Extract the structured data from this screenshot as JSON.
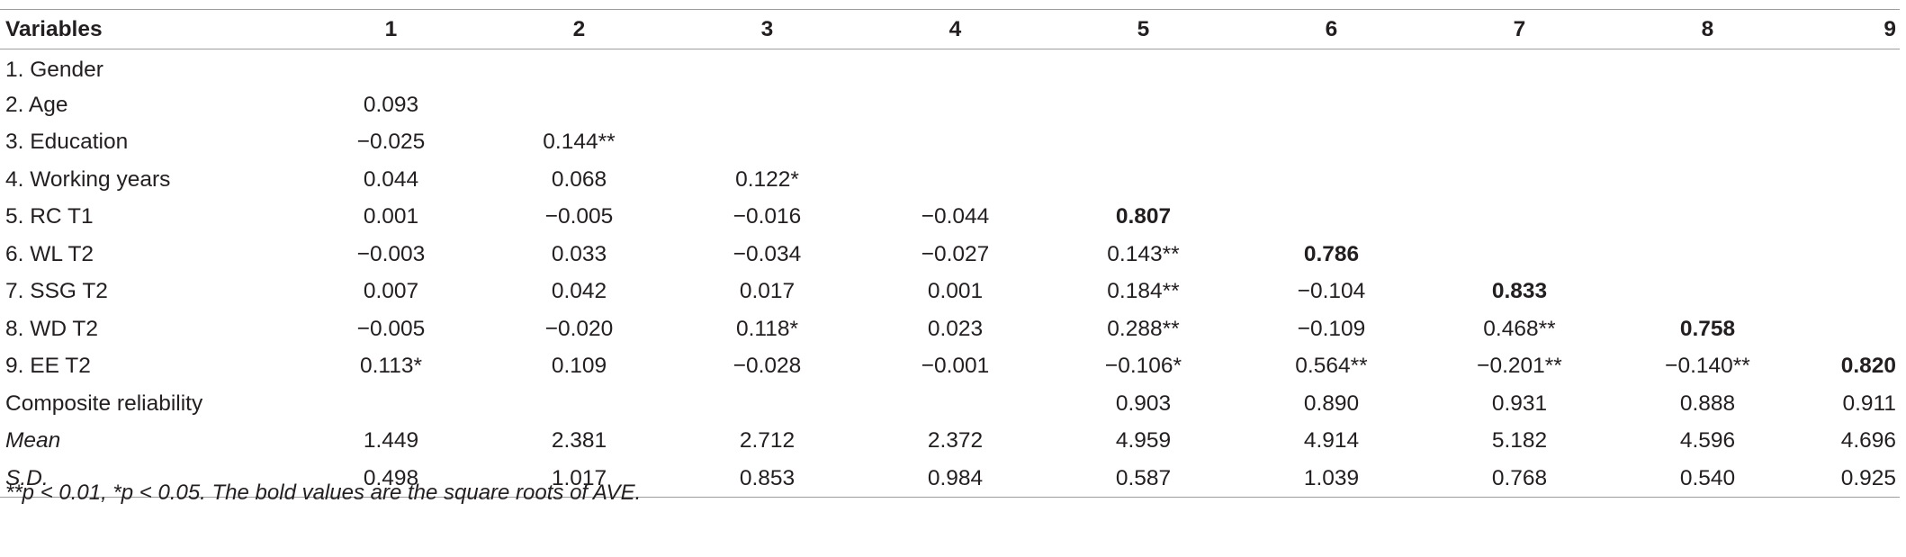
{
  "table": {
    "headers": [
      "Variables",
      "1",
      "2",
      "3",
      "4",
      "5",
      "6",
      "7",
      "8",
      "9"
    ],
    "rows": [
      {
        "label": "1. Gender",
        "cells": [
          "",
          "",
          "",
          "",
          "",
          "",
          "",
          "",
          ""
        ]
      },
      {
        "label": "2. Age",
        "cells": [
          "0.093",
          "",
          "",
          "",
          "",
          "",
          "",
          "",
          ""
        ]
      },
      {
        "label": "3. Education",
        "cells": [
          "−0.025",
          "0.144**",
          "",
          "",
          "",
          "",
          "",
          "",
          ""
        ]
      },
      {
        "label": "4. Working years",
        "cells": [
          "0.044",
          "0.068",
          "0.122*",
          "",
          "",
          "",
          "",
          "",
          ""
        ]
      },
      {
        "label": "5. RC T1",
        "cells": [
          "0.001",
          "−0.005",
          "−0.016",
          "−0.044",
          "0.807",
          "",
          "",
          "",
          ""
        ]
      },
      {
        "label": "6. WL T2",
        "cells": [
          "−0.003",
          "0.033",
          "−0.034",
          "−0.027",
          "0.143**",
          "0.786",
          "",
          "",
          ""
        ]
      },
      {
        "label": "7. SSG T2",
        "cells": [
          "0.007",
          "0.042",
          "0.017",
          "0.001",
          "0.184**",
          "−0.104",
          "0.833",
          "",
          ""
        ]
      },
      {
        "label": "8. WD T2",
        "cells": [
          "−0.005",
          "−0.020",
          "0.118*",
          "0.023",
          "0.288**",
          "−0.109",
          "0.468**",
          "0.758",
          ""
        ]
      },
      {
        "label": "9. EE T2",
        "cells": [
          "0.113*",
          "0.109",
          "−0.028",
          "−0.001",
          "−0.106*",
          "0.564**",
          "−0.201**",
          "−0.140**",
          "0.820"
        ]
      },
      {
        "label": "Composite reliability",
        "cells": [
          "",
          "",
          "",
          "",
          "0.903",
          "0.890",
          "0.931",
          "0.888",
          "0.911"
        ]
      },
      {
        "label": "Mean",
        "cells": [
          "1.449",
          "2.381",
          "2.712",
          "2.372",
          "4.959",
          "4.914",
          "5.182",
          "4.596",
          "4.696"
        ]
      },
      {
        "label": "S.D.",
        "cells": [
          "0.498",
          "1.017",
          "0.853",
          "0.984",
          "0.587",
          "1.039",
          "0.768",
          "0.540",
          "0.925"
        ]
      }
    ]
  },
  "note": "**p < 0.01, *p < 0.05. The bold values are the square roots of AVE."
}
